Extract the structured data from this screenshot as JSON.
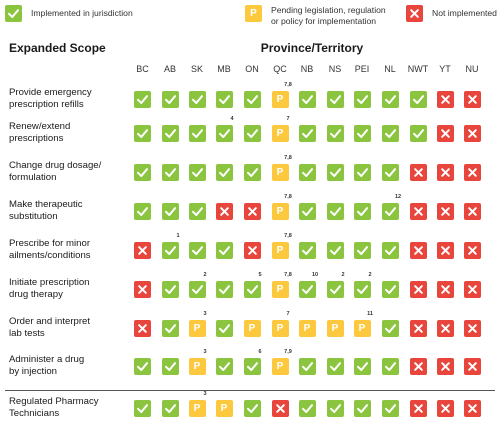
{
  "colors": {
    "implemented": "#8bc43f",
    "pending": "#fcc83e",
    "not_implemented": "#e8453c"
  },
  "legend": {
    "implemented": {
      "symbol": "check-icon",
      "label": "Implemented in jurisdiction"
    },
    "pending": {
      "symbol": "P",
      "label": "Pending legislation, regulation or policy for implementation"
    },
    "not_implemented": {
      "symbol": "x-icon",
      "label": "Not implemented"
    }
  },
  "headers": {
    "scope": "Expanded Scope",
    "province": "Province/Territory"
  },
  "columns": [
    "BC",
    "AB",
    "SK",
    "MB",
    "ON",
    "QC",
    "NB",
    "NS",
    "PEI",
    "NL",
    "NWT",
    "YT",
    "NU"
  ],
  "rows": [
    {
      "label_lines": [
        "Provide emergency",
        "prescription refills"
      ],
      "statuses": [
        "I",
        "I",
        "I",
        "I",
        "I",
        "P",
        "I",
        "I",
        "I",
        "I",
        "I",
        "N",
        "N"
      ],
      "notes": [
        "",
        "",
        "",
        "",
        "",
        "7,8",
        "",
        "",
        "",
        "",
        "",
        "",
        ""
      ]
    },
    {
      "label_lines": [
        "Renew/extend",
        "prescriptions"
      ],
      "statuses": [
        "I",
        "I",
        "I",
        "I",
        "I",
        "P",
        "I",
        "I",
        "I",
        "I",
        "I",
        "N",
        "N"
      ],
      "notes": [
        "",
        "",
        "",
        "4",
        "",
        "7",
        "",
        "",
        "",
        "",
        "",
        "",
        ""
      ]
    },
    {
      "label_lines": [
        "Change drug dosage/",
        "formulation"
      ],
      "statuses": [
        "I",
        "I",
        "I",
        "I",
        "I",
        "P",
        "I",
        "I",
        "I",
        "I",
        "N",
        "N",
        "N"
      ],
      "notes": [
        "",
        "",
        "",
        "",
        "",
        "7,8",
        "",
        "",
        "",
        "",
        "",
        "",
        ""
      ]
    },
    {
      "label_lines": [
        "Make therapeutic",
        "substitution"
      ],
      "statuses": [
        "I",
        "I",
        "I",
        "N",
        "N",
        "P",
        "I",
        "I",
        "I",
        "I",
        "N",
        "N",
        "N"
      ],
      "notes": [
        "",
        "",
        "",
        "",
        "",
        "7,8",
        "",
        "",
        "",
        "12",
        "",
        "",
        ""
      ]
    },
    {
      "label_lines": [
        "Prescribe for minor",
        "ailments/conditions"
      ],
      "statuses": [
        "N",
        "I",
        "I",
        "I",
        "N",
        "P",
        "I",
        "I",
        "I",
        "I",
        "N",
        "N",
        "N"
      ],
      "notes": [
        "",
        "1",
        "",
        "",
        "",
        "7,8",
        "",
        "",
        "",
        "",
        "",
        "",
        ""
      ]
    },
    {
      "label_lines": [
        "Initiate prescription",
        "drug therapy"
      ],
      "statuses": [
        "N",
        "I",
        "I",
        "I",
        "I",
        "P",
        "I",
        "I",
        "I",
        "I",
        "N",
        "N",
        "N"
      ],
      "notes": [
        "",
        "",
        "2",
        "",
        "5",
        "7,8",
        "10",
        "2",
        "2",
        "",
        "",
        "",
        ""
      ]
    },
    {
      "label_lines": [
        "Order and interpret",
        "lab tests"
      ],
      "statuses": [
        "N",
        "I",
        "P",
        "I",
        "P",
        "P",
        "P",
        "P",
        "P",
        "I",
        "N",
        "N",
        "N"
      ],
      "notes": [
        "",
        "",
        "3",
        "",
        "",
        "7",
        "",
        "",
        "11",
        "",
        "",
        "",
        ""
      ]
    },
    {
      "label_lines": [
        "Administer a drug",
        "by injection"
      ],
      "statuses": [
        "I",
        "I",
        "P",
        "I",
        "I",
        "P",
        "I",
        "I",
        "I",
        "I",
        "N",
        "N",
        "N"
      ],
      "notes": [
        "",
        "",
        "3",
        "",
        "6",
        "7,9",
        "",
        "",
        "",
        "",
        "",
        "",
        ""
      ]
    },
    {
      "label_lines": [
        "Regulated Pharmacy",
        "Technicians"
      ],
      "statuses": [
        "I",
        "I",
        "P",
        "P",
        "I",
        "N",
        "I",
        "I",
        "I",
        "I",
        "N",
        "N",
        "N"
      ],
      "notes": [
        "",
        "",
        "3",
        "",
        "",
        "",
        "",
        "",
        "",
        "",
        "",
        "",
        ""
      ]
    }
  ]
}
